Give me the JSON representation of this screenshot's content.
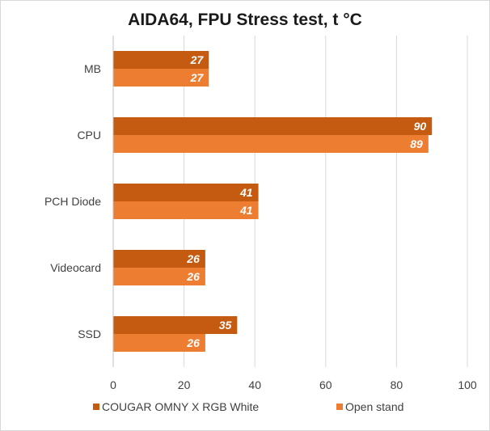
{
  "chart_data": {
    "type": "bar",
    "orientation": "horizontal",
    "title": "AIDA64, FPU Stress test, t °C",
    "xlabel": "",
    "ylabel": "",
    "categories": [
      "MB",
      "CPU",
      "PCH Diode",
      "Videocard",
      "SSD"
    ],
    "series": [
      {
        "name": "COUGAR OMNY X RGB White",
        "color": "#c55a11",
        "values": [
          27,
          90,
          41,
          26,
          35
        ]
      },
      {
        "name": "Open stand",
        "color": "#ed7d31",
        "values": [
          27,
          89,
          41,
          26,
          26
        ]
      }
    ],
    "xlim": [
      0,
      100
    ],
    "ticks": [
      0,
      20,
      40,
      60,
      80,
      100
    ],
    "grid": true,
    "legend_position": "bottom",
    "gridline_color": "#d9d9d9"
  }
}
